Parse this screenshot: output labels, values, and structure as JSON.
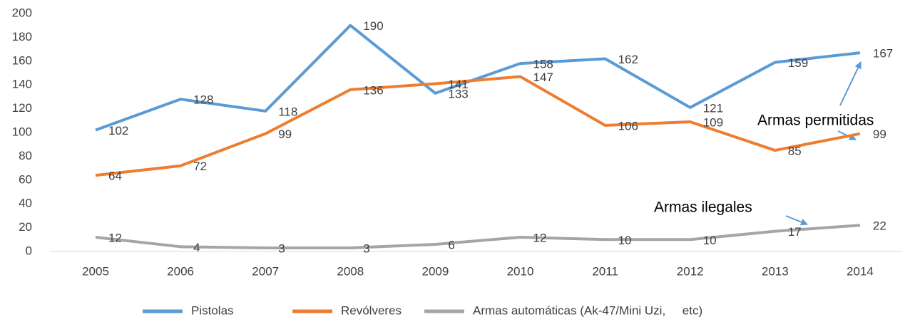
{
  "chart_data": {
    "type": "line",
    "categories": [
      "2005",
      "2006",
      "2007",
      "2008",
      "2009",
      "2010",
      "2011",
      "2012",
      "2013",
      "2014"
    ],
    "series": [
      {
        "name": "Pistolas",
        "color": "#5b9bd5",
        "values": [
          102,
          128,
          118,
          190,
          133,
          158,
          162,
          121,
          159,
          167
        ]
      },
      {
        "name": "Revólveres",
        "color": "#ed7d31",
        "values": [
          64,
          72,
          99,
          136,
          141,
          147,
          106,
          109,
          85,
          99
        ]
      },
      {
        "name": "Armas automáticas (Ak-47/Mini Uzi,     etc)",
        "color": "#a5a5a5",
        "values": [
          12,
          4,
          3,
          3,
          6,
          12,
          10,
          10,
          17,
          22
        ]
      }
    ],
    "ylim": [
      0,
      200
    ],
    "yticks": [
      0,
      20,
      40,
      60,
      80,
      100,
      120,
      140,
      160,
      180,
      200
    ],
    "grid": false,
    "legend": "bottom",
    "annotations": [
      "Armas permitidas",
      "Armas ilegales"
    ]
  }
}
